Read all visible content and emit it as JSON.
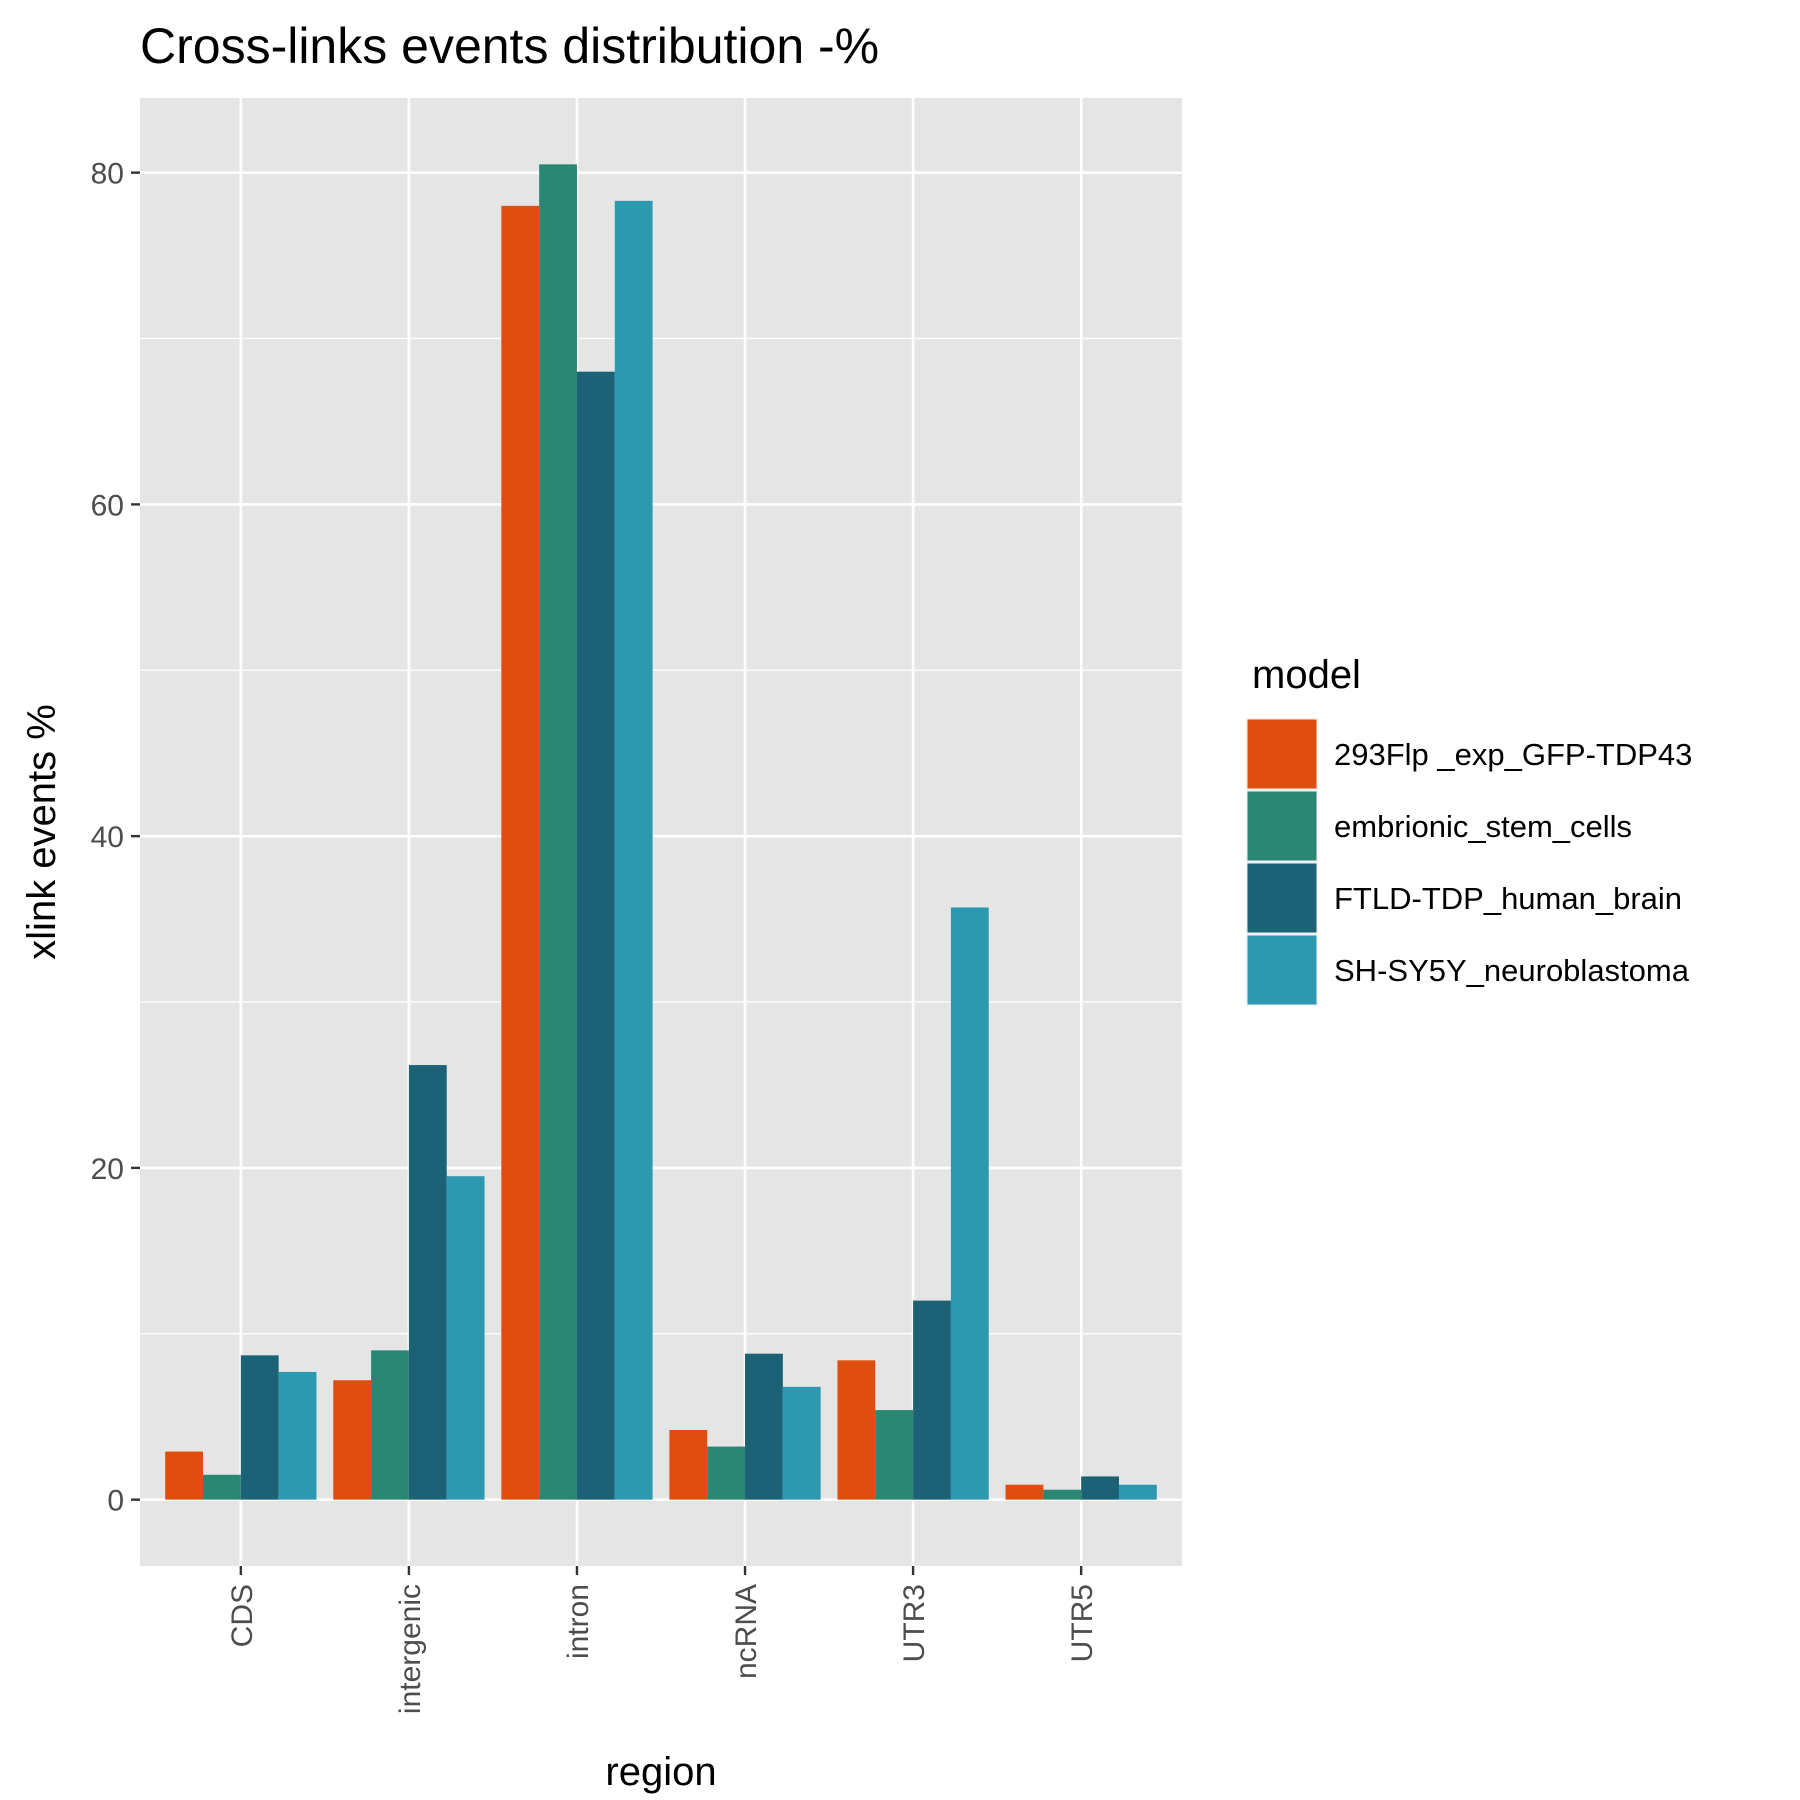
{
  "chart_data": {
    "type": "bar",
    "title": "Cross-links events distribution -%",
    "xlabel": "region",
    "ylabel": "xlink events %",
    "categories": [
      "CDS",
      "intergenic",
      "intron",
      "ncRNA",
      "UTR3",
      "UTR5"
    ],
    "yticks": [
      "0",
      "20",
      "40",
      "60",
      "80"
    ],
    "ylim": [
      -4,
      84.5
    ],
    "grid": true,
    "legend": {
      "title": "model",
      "position": "right"
    },
    "series": [
      {
        "name": "293Flp _exp_GFP-TDP43",
        "color": "#E04E0D",
        "values": [
          2.9,
          7.2,
          78.0,
          4.2,
          8.4,
          0.9
        ]
      },
      {
        "name": "embrionic_stem_cells",
        "color": "#2A8773",
        "values": [
          1.5,
          9.0,
          80.5,
          3.2,
          5.4,
          0.6
        ]
      },
      {
        "name": "FTLD-TDP_human_brain",
        "color": "#1B6276",
        "values": [
          8.7,
          26.2,
          68.0,
          8.8,
          12.0,
          1.4
        ]
      },
      {
        "name": "SH-SY5Y_neuroblastoma",
        "color": "#2D99B0",
        "values": [
          7.7,
          19.5,
          78.3,
          6.8,
          35.7,
          0.9
        ]
      }
    ]
  }
}
